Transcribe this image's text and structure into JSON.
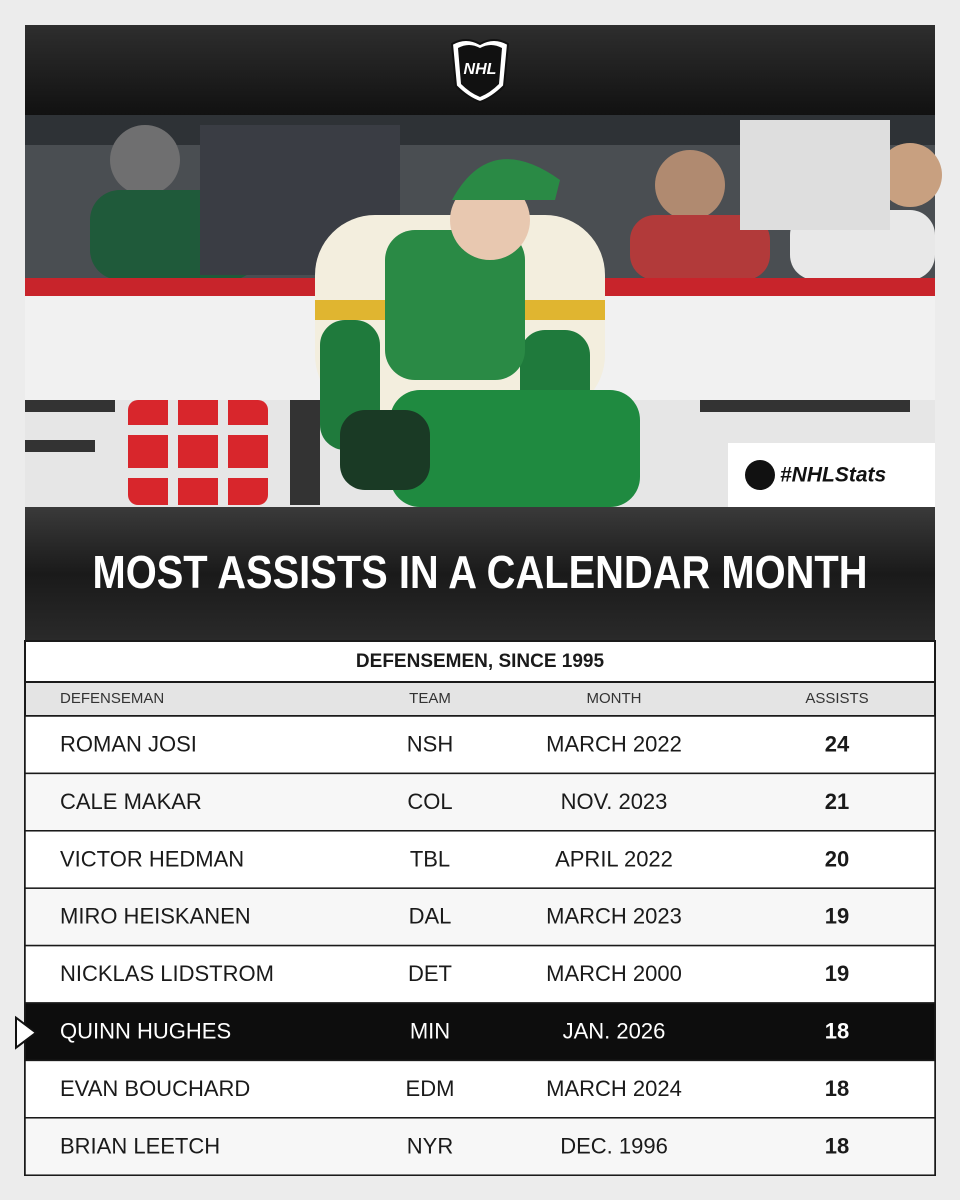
{
  "logo": {
    "text": "NHL"
  },
  "hashtag": "#NHLStats",
  "title": "MOST ASSISTS IN A CALENDAR MONTH",
  "subtitle": "DEFENSEMEN, SINCE 1995",
  "table": {
    "columns": [
      "DEFENSEMAN",
      "TEAM",
      "MONTH",
      "ASSISTS"
    ],
    "rows": [
      {
        "player": "ROMAN JOSI",
        "team": "NSH",
        "month": "MARCH 2022",
        "assists": 24
      },
      {
        "player": "CALE MAKAR",
        "team": "COL",
        "month": "NOV. 2023",
        "assists": 21
      },
      {
        "player": "VICTOR HEDMAN",
        "team": "TBL",
        "month": "APRIL 2022",
        "assists": 20
      },
      {
        "player": "MIRO HEISKANEN",
        "team": "DAL",
        "month": "MARCH 2023",
        "assists": 19
      },
      {
        "player": "NICKLAS LIDSTROM",
        "team": "DET",
        "month": "MARCH 2000",
        "assists": 19
      },
      {
        "player": "QUINN HUGHES",
        "team": "MIN",
        "month": "JAN. 2026",
        "assists": 18,
        "highlighted": true
      },
      {
        "player": "EVAN BOUCHARD",
        "team": "EDM",
        "month": "MARCH 2024",
        "assists": 18
      },
      {
        "player": "BRIAN LEETCH",
        "team": "NYR",
        "month": "DEC. 1996",
        "assists": 18
      }
    ]
  }
}
